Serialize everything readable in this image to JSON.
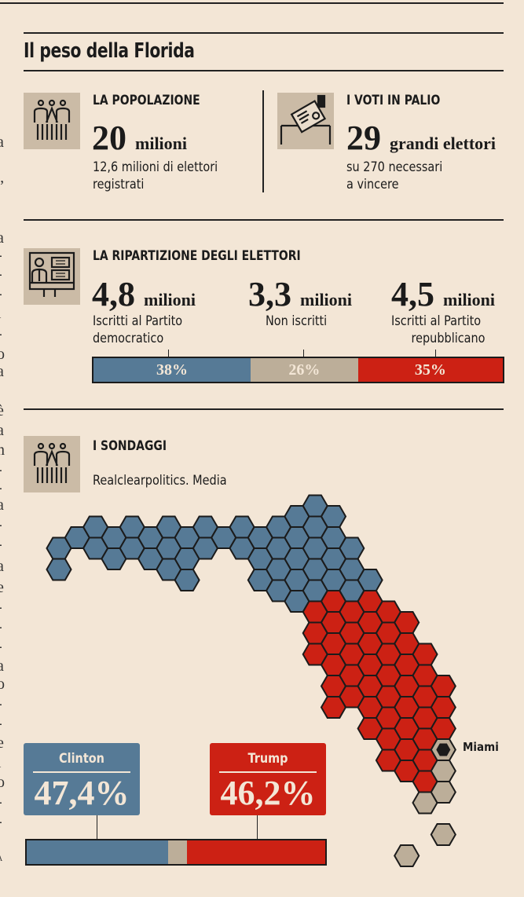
{
  "title": "Il peso della Florida",
  "side_fragments": [
    ".",
    "a",
    ".",
    ",",
    "”",
    ",",
    "a",
    "-",
    "-",
    "-",
    "l",
    "-",
    "o",
    "a",
    "è",
    "a",
    "n",
    "-",
    "-",
    "a",
    "-",
    "-",
    "a",
    "e",
    "-",
    "-",
    "-",
    "a",
    "o",
    "-",
    "-",
    "e",
    "l",
    "o",
    "-",
    "-",
    "A"
  ],
  "population": {
    "heading": "LA POPOLAZIONE",
    "value": "20",
    "unit": "milioni",
    "desc_lines": [
      "12,6 milioni di elettori",
      "registrati"
    ],
    "icon": "people-icon"
  },
  "votes": {
    "heading": "I VOTI IN PALIO",
    "value": "29",
    "unit": "grandi elettori",
    "desc_lines": [
      "su 270 necessari",
      "a vincere"
    ],
    "icon": "ballot-box-icon"
  },
  "breakdown": {
    "heading": "LA RIPARTIZIONE DEGLI ELETTORI",
    "icon": "voting-booth-icon",
    "groups": [
      {
        "value": "4,8",
        "unit": "milioni",
        "desc_lines": [
          "Iscritti al Partito",
          "democratico"
        ],
        "percent_label": "38%",
        "percent": 38,
        "color": "#567a96"
      },
      {
        "value": "3,3",
        "unit": "milioni",
        "desc_lines": [
          "Non iscritti"
        ],
        "percent_label": "26%",
        "percent": 26,
        "color": "#bcae99"
      },
      {
        "value": "4,5",
        "unit": "milioni",
        "desc_lines": [
          "Iscritti al Partito",
          "repubblicano"
        ],
        "percent_label": "35%",
        "percent": 35,
        "color": "#cc2114"
      }
    ]
  },
  "polls": {
    "heading": "I SONDAGGI",
    "source": "Realclearpolitics. Media",
    "icon": "people-icon",
    "map_label": "Miami",
    "candidates": [
      {
        "name": "Clinton",
        "percent_label": "47,4%",
        "percent": 47.4,
        "color": "#567a96"
      },
      {
        "name": "Trump",
        "percent_label": "46,2%",
        "percent": 46.2,
        "color": "#cc2114"
      }
    ],
    "other_percent": 6.4,
    "other_color": "#bcae99"
  }
}
